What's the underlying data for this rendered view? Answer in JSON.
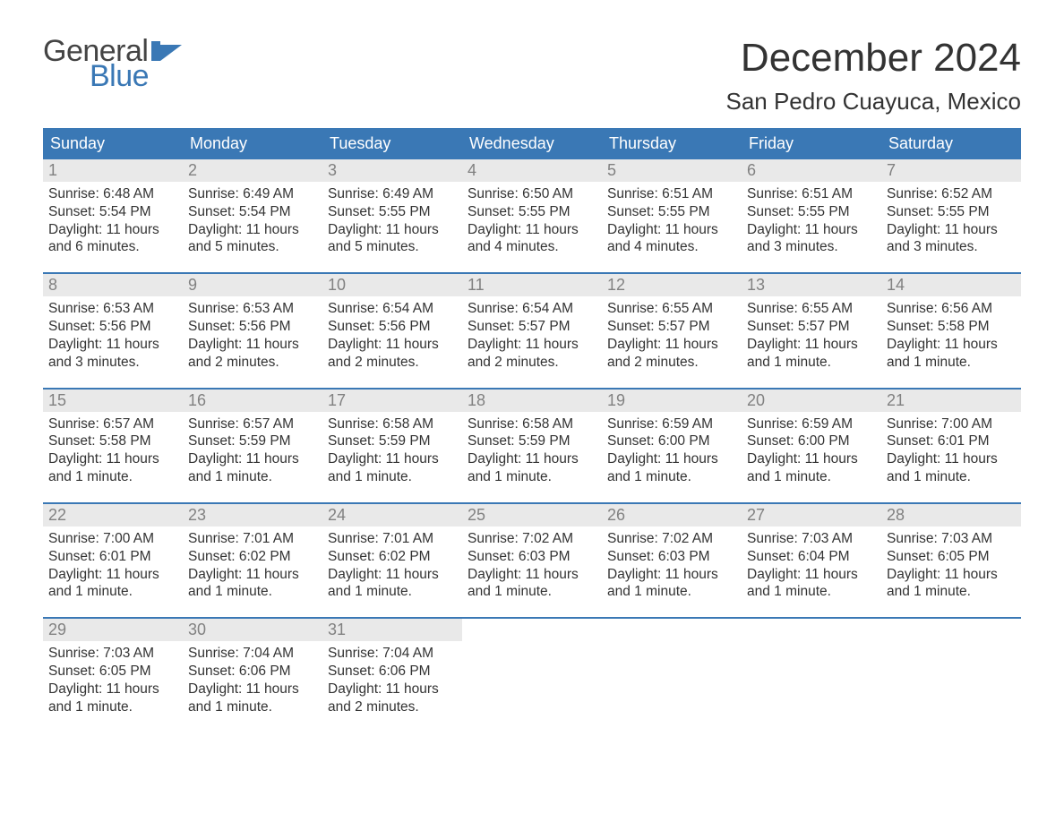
{
  "logo": {
    "word1": "General",
    "word2": "Blue",
    "word1_color": "#444444",
    "word2_color": "#3a78b5",
    "flag_color": "#3a78b5"
  },
  "title": {
    "month": "December 2024",
    "location": "San Pedro Cuayuca, Mexico",
    "month_fontsize": 44,
    "location_fontsize": 26,
    "text_color": "#333333"
  },
  "calendar": {
    "header_bg": "#3a78b5",
    "header_text_color": "#ffffff",
    "daynum_bg": "#e9e9e9",
    "daynum_color": "#818181",
    "week_border_color": "#3a78b5",
    "body_text_color": "#333333",
    "background_color": "#ffffff",
    "header_fontsize": 18,
    "daynum_fontsize": 18,
    "body_fontsize": 15.5,
    "days": [
      "Sunday",
      "Monday",
      "Tuesday",
      "Wednesday",
      "Thursday",
      "Friday",
      "Saturday"
    ],
    "weeks": [
      [
        {
          "n": "1",
          "sr": "Sunrise: 6:48 AM",
          "ss": "Sunset: 5:54 PM",
          "dl": "Daylight: 11 hours and 6 minutes."
        },
        {
          "n": "2",
          "sr": "Sunrise: 6:49 AM",
          "ss": "Sunset: 5:54 PM",
          "dl": "Daylight: 11 hours and 5 minutes."
        },
        {
          "n": "3",
          "sr": "Sunrise: 6:49 AM",
          "ss": "Sunset: 5:55 PM",
          "dl": "Daylight: 11 hours and 5 minutes."
        },
        {
          "n": "4",
          "sr": "Sunrise: 6:50 AM",
          "ss": "Sunset: 5:55 PM",
          "dl": "Daylight: 11 hours and 4 minutes."
        },
        {
          "n": "5",
          "sr": "Sunrise: 6:51 AM",
          "ss": "Sunset: 5:55 PM",
          "dl": "Daylight: 11 hours and 4 minutes."
        },
        {
          "n": "6",
          "sr": "Sunrise: 6:51 AM",
          "ss": "Sunset: 5:55 PM",
          "dl": "Daylight: 11 hours and 3 minutes."
        },
        {
          "n": "7",
          "sr": "Sunrise: 6:52 AM",
          "ss": "Sunset: 5:55 PM",
          "dl": "Daylight: 11 hours and 3 minutes."
        }
      ],
      [
        {
          "n": "8",
          "sr": "Sunrise: 6:53 AM",
          "ss": "Sunset: 5:56 PM",
          "dl": "Daylight: 11 hours and 3 minutes."
        },
        {
          "n": "9",
          "sr": "Sunrise: 6:53 AM",
          "ss": "Sunset: 5:56 PM",
          "dl": "Daylight: 11 hours and 2 minutes."
        },
        {
          "n": "10",
          "sr": "Sunrise: 6:54 AM",
          "ss": "Sunset: 5:56 PM",
          "dl": "Daylight: 11 hours and 2 minutes."
        },
        {
          "n": "11",
          "sr": "Sunrise: 6:54 AM",
          "ss": "Sunset: 5:57 PM",
          "dl": "Daylight: 11 hours and 2 minutes."
        },
        {
          "n": "12",
          "sr": "Sunrise: 6:55 AM",
          "ss": "Sunset: 5:57 PM",
          "dl": "Daylight: 11 hours and 2 minutes."
        },
        {
          "n": "13",
          "sr": "Sunrise: 6:55 AM",
          "ss": "Sunset: 5:57 PM",
          "dl": "Daylight: 11 hours and 1 minute."
        },
        {
          "n": "14",
          "sr": "Sunrise: 6:56 AM",
          "ss": "Sunset: 5:58 PM",
          "dl": "Daylight: 11 hours and 1 minute."
        }
      ],
      [
        {
          "n": "15",
          "sr": "Sunrise: 6:57 AM",
          "ss": "Sunset: 5:58 PM",
          "dl": "Daylight: 11 hours and 1 minute."
        },
        {
          "n": "16",
          "sr": "Sunrise: 6:57 AM",
          "ss": "Sunset: 5:59 PM",
          "dl": "Daylight: 11 hours and 1 minute."
        },
        {
          "n": "17",
          "sr": "Sunrise: 6:58 AM",
          "ss": "Sunset: 5:59 PM",
          "dl": "Daylight: 11 hours and 1 minute."
        },
        {
          "n": "18",
          "sr": "Sunrise: 6:58 AM",
          "ss": "Sunset: 5:59 PM",
          "dl": "Daylight: 11 hours and 1 minute."
        },
        {
          "n": "19",
          "sr": "Sunrise: 6:59 AM",
          "ss": "Sunset: 6:00 PM",
          "dl": "Daylight: 11 hours and 1 minute."
        },
        {
          "n": "20",
          "sr": "Sunrise: 6:59 AM",
          "ss": "Sunset: 6:00 PM",
          "dl": "Daylight: 11 hours and 1 minute."
        },
        {
          "n": "21",
          "sr": "Sunrise: 7:00 AM",
          "ss": "Sunset: 6:01 PM",
          "dl": "Daylight: 11 hours and 1 minute."
        }
      ],
      [
        {
          "n": "22",
          "sr": "Sunrise: 7:00 AM",
          "ss": "Sunset: 6:01 PM",
          "dl": "Daylight: 11 hours and 1 minute."
        },
        {
          "n": "23",
          "sr": "Sunrise: 7:01 AM",
          "ss": "Sunset: 6:02 PM",
          "dl": "Daylight: 11 hours and 1 minute."
        },
        {
          "n": "24",
          "sr": "Sunrise: 7:01 AM",
          "ss": "Sunset: 6:02 PM",
          "dl": "Daylight: 11 hours and 1 minute."
        },
        {
          "n": "25",
          "sr": "Sunrise: 7:02 AM",
          "ss": "Sunset: 6:03 PM",
          "dl": "Daylight: 11 hours and 1 minute."
        },
        {
          "n": "26",
          "sr": "Sunrise: 7:02 AM",
          "ss": "Sunset: 6:03 PM",
          "dl": "Daylight: 11 hours and 1 minute."
        },
        {
          "n": "27",
          "sr": "Sunrise: 7:03 AM",
          "ss": "Sunset: 6:04 PM",
          "dl": "Daylight: 11 hours and 1 minute."
        },
        {
          "n": "28",
          "sr": "Sunrise: 7:03 AM",
          "ss": "Sunset: 6:05 PM",
          "dl": "Daylight: 11 hours and 1 minute."
        }
      ],
      [
        {
          "n": "29",
          "sr": "Sunrise: 7:03 AM",
          "ss": "Sunset: 6:05 PM",
          "dl": "Daylight: 11 hours and 1 minute."
        },
        {
          "n": "30",
          "sr": "Sunrise: 7:04 AM",
          "ss": "Sunset: 6:06 PM",
          "dl": "Daylight: 11 hours and 1 minute."
        },
        {
          "n": "31",
          "sr": "Sunrise: 7:04 AM",
          "ss": "Sunset: 6:06 PM",
          "dl": "Daylight: 11 hours and 2 minutes."
        },
        null,
        null,
        null,
        null
      ]
    ]
  }
}
